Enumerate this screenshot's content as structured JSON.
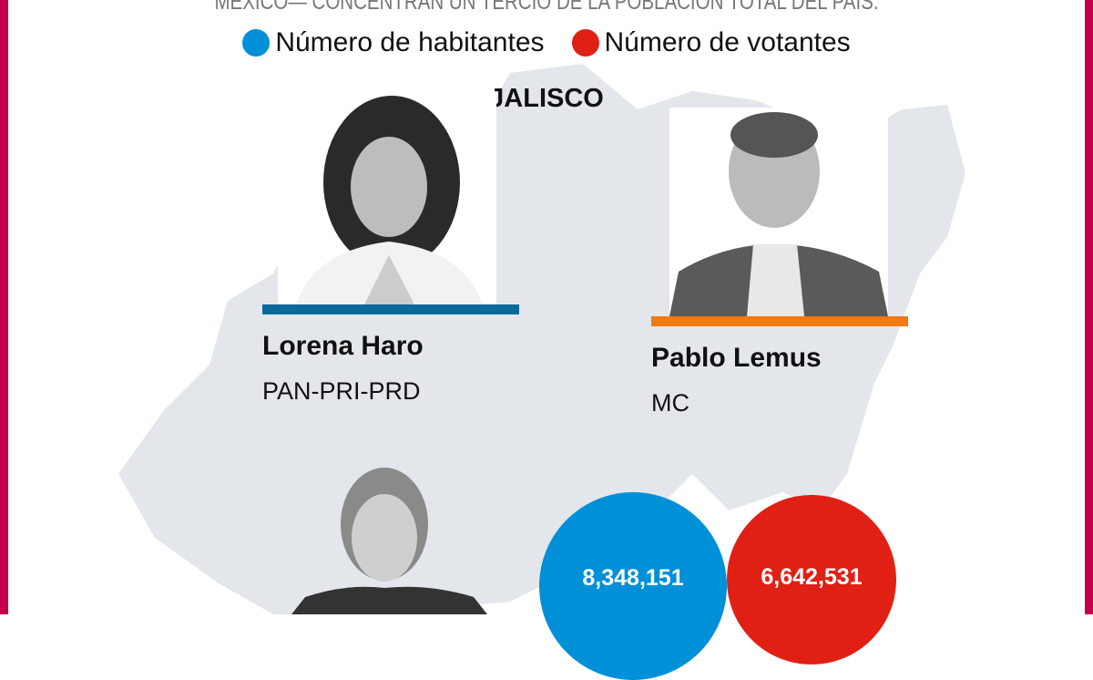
{
  "subtitle": "MÉXICO— CONCENTRAN UN TERCIO DE LA POBLACIÓN TOTAL DEL PAÍS.",
  "legend": [
    {
      "label": "Número de habitantes",
      "color": "#0090d8"
    },
    {
      "label": "Número de votantes",
      "color": "#e02015"
    }
  ],
  "state": "JALISCO",
  "candidates": [
    {
      "name": "Lorena Haro",
      "party": "PAN-PRI-PRD",
      "bar_color": "#0b6a9a"
    },
    {
      "name": "Pablo Lemus",
      "party": "MC",
      "bar_color": "#f07a13"
    }
  ],
  "stats": {
    "habitantes": "8,348,151",
    "votantes": "6,642,531"
  },
  "colors": {
    "border": "#c4004a",
    "map": "#e3e7eb"
  }
}
